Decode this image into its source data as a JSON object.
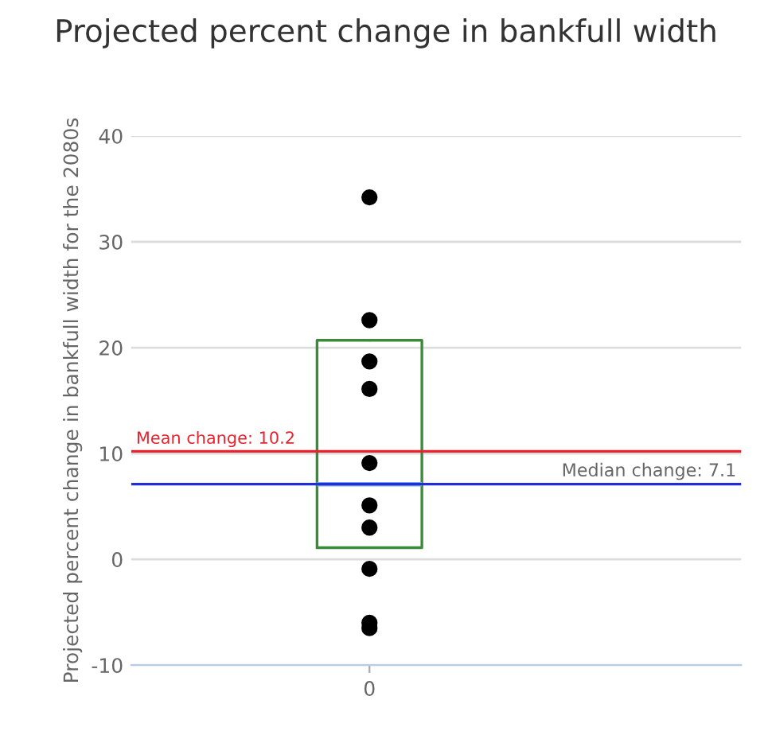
{
  "chart_data": {
    "type": "box",
    "title": "Projected percent change in bankfull width",
    "ylabel": "Projected percent change in bankfull width for the 2080s",
    "categories": [
      "0"
    ],
    "series": [
      {
        "color": "#3a8a3a",
        "boxes": [
          {
            "low": 1.1,
            "q1": 1.1,
            "median": 7.1,
            "q3": 20.7,
            "high": 20.7
          }
        ]
      },
      {
        "type": "scatter",
        "color": "#000000",
        "x": [
          "0",
          "0",
          "0",
          "0",
          "0",
          "0",
          "0",
          "0",
          "0",
          "0"
        ],
        "values": [
          34.2,
          22.6,
          18.7,
          16.1,
          9.1,
          5.1,
          3.0,
          -0.9,
          -6.0,
          -6.5
        ]
      }
    ],
    "ref_lines": [
      {
        "axis": "y",
        "value": 10.2,
        "label": "Mean change: 10.2",
        "color": "#e8222e"
      },
      {
        "axis": "y",
        "value": 7.1,
        "label": "Median change: 7.1",
        "color": "#1f2ed8"
      }
    ],
    "ylim": [
      -10,
      40
    ],
    "yticks": [
      -10,
      0,
      10,
      20,
      30,
      40
    ],
    "grid": "y",
    "marker": "circle"
  }
}
